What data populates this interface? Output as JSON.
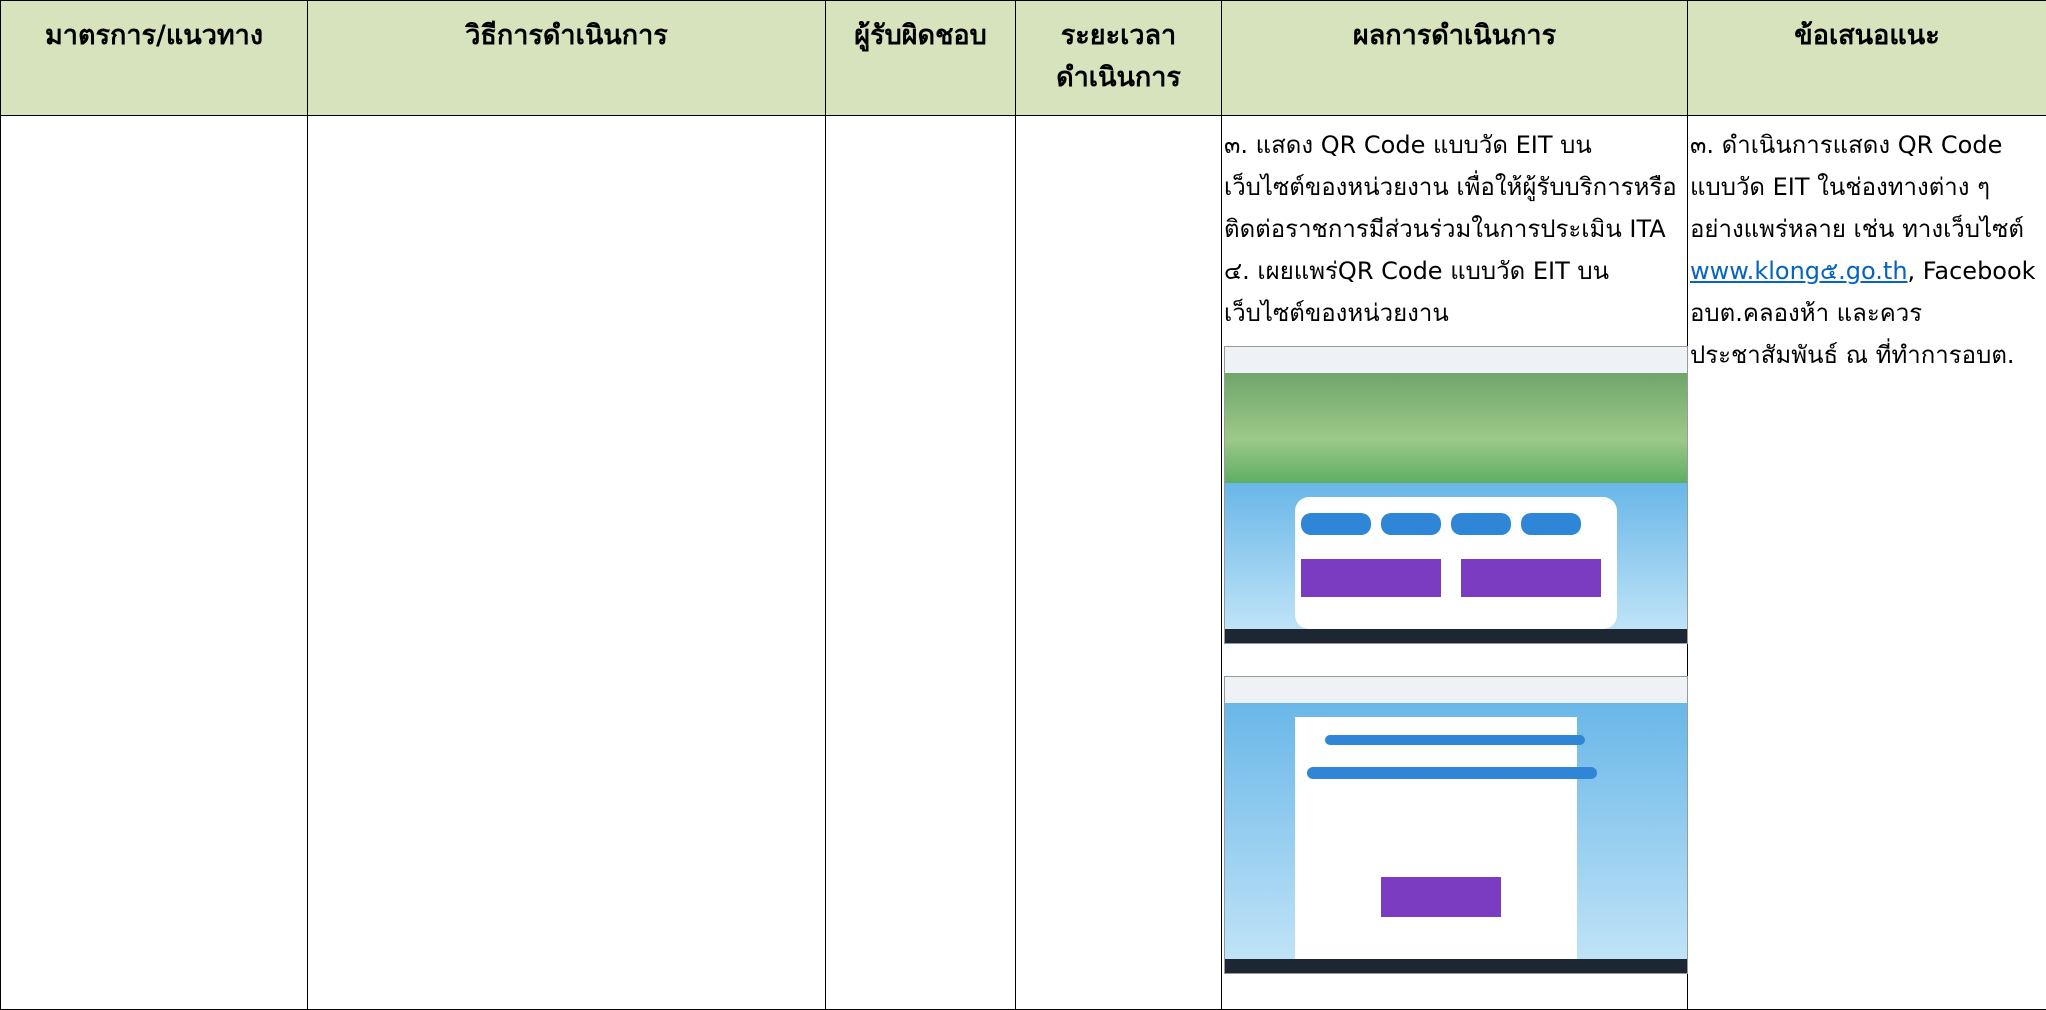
{
  "table": {
    "headers": [
      "มาตรการ/แนวทาง",
      "วิธีการดำเนินการ",
      "ผู้รับผิดชอบ",
      [
        "ระยะเวลา",
        "ดำเนินการ"
      ],
      "ผลการดำเนินการ",
      "ข้อเสนอแนะ"
    ],
    "result_lines": [
      "๓. แสดง QR Code แบบวัด EIT บน",
      "เว็บไซต์ของหน่วยงาน เพื่อให้ผู้รับบริการหรือ",
      "ติดต่อราชการมีส่วนร่วมในการประเมิน ITA",
      "๔. เผยแพร่QR Code แบบวัด EIT บน",
      "เว็บไซต์ของหน่วยงาน"
    ],
    "recommendation": {
      "lines_before": [
        "๓.  ดำเนินการแสดง QR Code",
        "แบบวัด EIT ในช่องทางต่าง ๆ",
        "อย่างแพร่หลาย เช่น  ทางเว็บไซต์"
      ],
      "link": "www.klong๕.go.th",
      "after_link": ", Facebook",
      "lines_after": [
        "อบต.คลองห้า และควร",
        "ประชาสัมพันธ์ ณ ที่ทำการอบต."
      ]
    }
  }
}
